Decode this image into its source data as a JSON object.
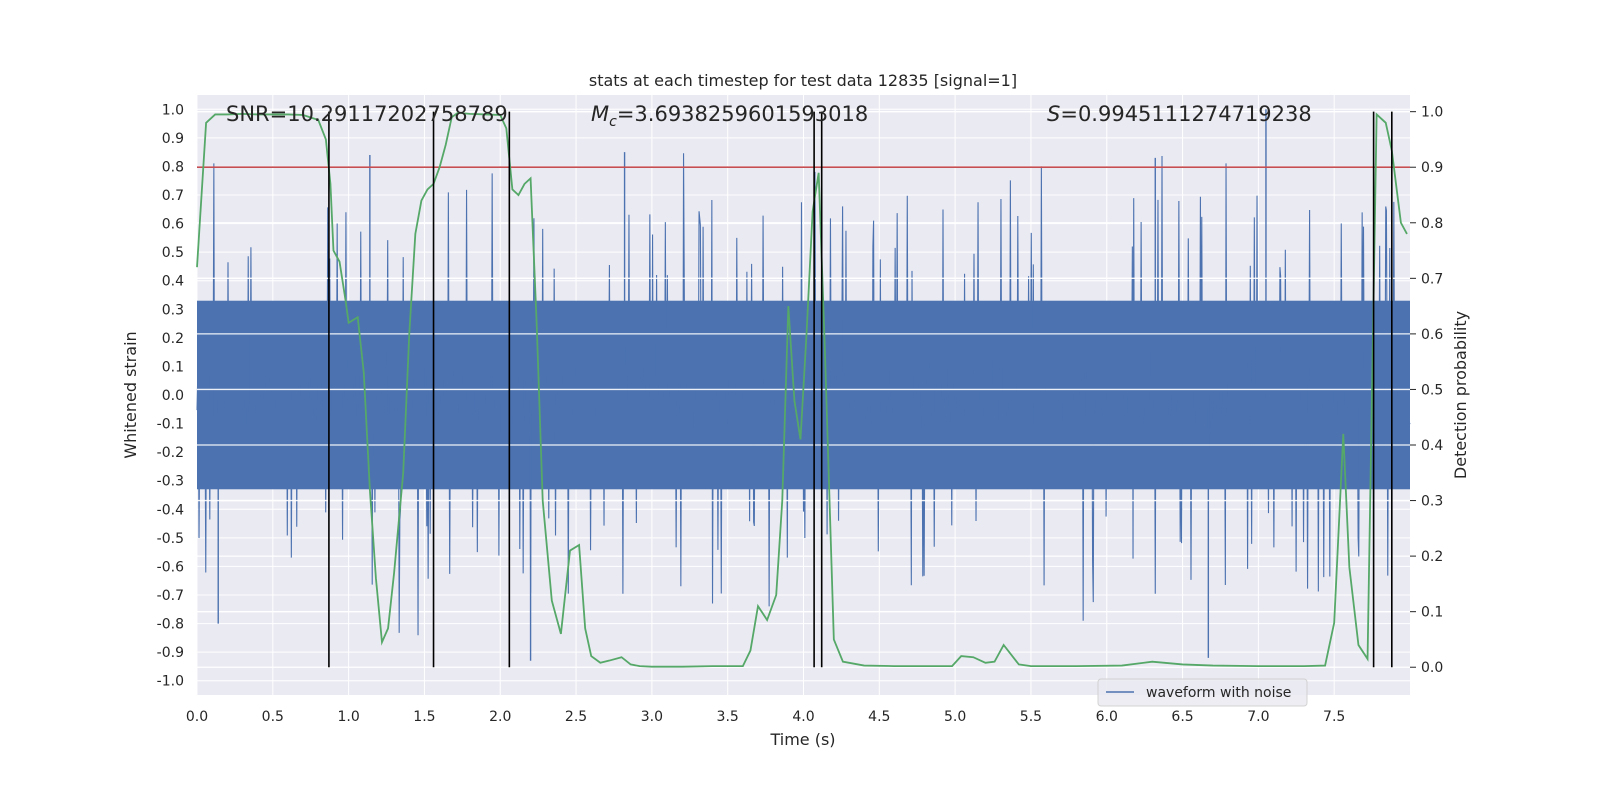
{
  "chart_data": {
    "type": "line",
    "title": "stats at each timestep for test data 12835 [signal=1]",
    "xlabel": "Time (s)",
    "ylabel": "Whitened strain",
    "ylabel_right": "Detection probability",
    "xlim": [
      0.0,
      8.0
    ],
    "ylim_left": [
      -1.05,
      1.05
    ],
    "ylim_right": [
      -0.05,
      1.03
    ],
    "x_ticks": [
      "0.0",
      "0.5",
      "1.0",
      "1.5",
      "2.0",
      "2.5",
      "3.0",
      "3.5",
      "4.0",
      "4.5",
      "5.0",
      "5.5",
      "6.0",
      "6.5",
      "7.0",
      "7.5"
    ],
    "y_ticks_left": [
      "1.0",
      "0.9",
      "0.8",
      "0.7",
      "0.6",
      "0.5",
      "0.4",
      "0.3",
      "0.2",
      "0.1",
      "0.0",
      "-0.1",
      "-0.2",
      "-0.3",
      "-0.4",
      "-0.5",
      "-0.6",
      "-0.7",
      "-0.8",
      "-0.9",
      "-1.0"
    ],
    "y_ticks_right": [
      "1.0",
      "0.9",
      "0.8",
      "0.7",
      "0.6",
      "0.5",
      "0.4",
      "0.3",
      "0.2",
      "0.1",
      "0.0"
    ],
    "annotations": {
      "snr": "SNR=10.29117202758789",
      "mc_symbol": "M",
      "mc_sub": "c",
      "mc_value": "=3.6938259601593018",
      "s_symbol": "S",
      "s_value": "=0.9945111274719238"
    },
    "legend": {
      "label": "waveform with noise",
      "placement": "lower-right"
    },
    "threshold": {
      "axis": "right",
      "value": 0.9
    },
    "vertical_lines": [
      0.87,
      1.56,
      2.06,
      4.07,
      4.12,
      7.76,
      7.88
    ],
    "noise_series": {
      "name": "waveform with noise",
      "seed": 12835,
      "core_amplitude": 0.33,
      "typical_peak": 0.55,
      "max_peak": 1.0,
      "min_peak": -0.93
    },
    "probability_series": {
      "name": "detection probability",
      "x": [
        0.0,
        0.06,
        0.12,
        0.2,
        0.3,
        0.4,
        0.5,
        0.6,
        0.7,
        0.8,
        0.85,
        0.88,
        0.9,
        0.94,
        0.98,
        1.0,
        1.06,
        1.1,
        1.14,
        1.18,
        1.22,
        1.26,
        1.3,
        1.36,
        1.4,
        1.44,
        1.48,
        1.52,
        1.56,
        1.6,
        1.64,
        1.68,
        1.72,
        1.8,
        1.9,
        2.0,
        2.04,
        2.08,
        2.12,
        2.16,
        2.2,
        2.24,
        2.28,
        2.34,
        2.4,
        2.46,
        2.52,
        2.56,
        2.6,
        2.66,
        2.72,
        2.8,
        2.86,
        2.92,
        3.0,
        3.2,
        3.4,
        3.6,
        3.65,
        3.7,
        3.76,
        3.82,
        3.86,
        3.9,
        3.94,
        3.98,
        4.02,
        4.06,
        4.1,
        4.14,
        4.2,
        4.26,
        4.4,
        4.6,
        4.8,
        4.98,
        5.04,
        5.12,
        5.2,
        5.26,
        5.32,
        5.42,
        5.5,
        5.8,
        6.1,
        6.3,
        6.5,
        6.7,
        7.0,
        7.3,
        7.44,
        7.5,
        7.56,
        7.6,
        7.66,
        7.72,
        7.78,
        7.84,
        7.88,
        7.94,
        7.98
      ],
      "y": [
        0.72,
        0.98,
        0.995,
        0.995,
        0.996,
        0.995,
        0.995,
        0.995,
        0.994,
        0.985,
        0.95,
        0.87,
        0.75,
        0.73,
        0.66,
        0.62,
        0.63,
        0.53,
        0.32,
        0.16,
        0.045,
        0.07,
        0.17,
        0.35,
        0.6,
        0.78,
        0.84,
        0.86,
        0.87,
        0.9,
        0.94,
        0.99,
        0.998,
        0.996,
        0.995,
        0.994,
        0.97,
        0.86,
        0.85,
        0.87,
        0.88,
        0.62,
        0.3,
        0.12,
        0.06,
        0.21,
        0.22,
        0.07,
        0.02,
        0.008,
        0.012,
        0.018,
        0.005,
        0.002,
        0.001,
        0.001,
        0.002,
        0.002,
        0.03,
        0.11,
        0.085,
        0.13,
        0.3,
        0.65,
        0.48,
        0.41,
        0.6,
        0.82,
        0.89,
        0.58,
        0.05,
        0.01,
        0.003,
        0.002,
        0.002,
        0.002,
        0.02,
        0.018,
        0.008,
        0.01,
        0.04,
        0.005,
        0.002,
        0.002,
        0.003,
        0.01,
        0.005,
        0.003,
        0.002,
        0.002,
        0.003,
        0.08,
        0.42,
        0.18,
        0.04,
        0.015,
        0.995,
        0.98,
        0.93,
        0.8,
        0.78
      ]
    },
    "colors": {
      "plot_bg": "#eaeaf2",
      "grid": "#ffffff",
      "noise": "#4c72b0",
      "probability": "#55a868",
      "threshold": "#c44e52",
      "vline": "#000000",
      "text": "#262626"
    }
  }
}
